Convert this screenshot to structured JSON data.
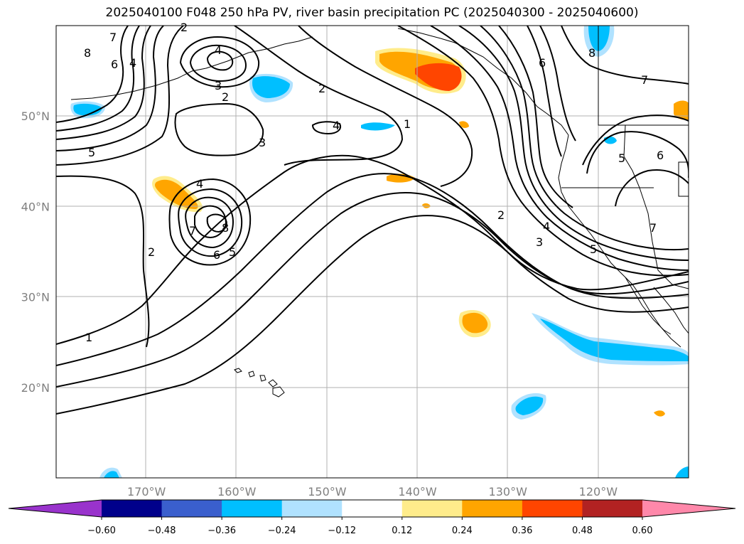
{
  "title": "2025040100 F048 250 hPa PV, river basin precipitation PC (2025040300 - 2025040600)",
  "x_ticks": [
    {
      "lon": -170,
      "label": "170°W"
    },
    {
      "lon": -160,
      "label": "160°W"
    },
    {
      "lon": -150,
      "label": "150°W"
    },
    {
      "lon": -140,
      "label": "140°W"
    },
    {
      "lon": -130,
      "label": "130°W"
    },
    {
      "lon": -120,
      "label": "120°W"
    }
  ],
  "y_ticks": [
    {
      "lat": 50,
      "label": "50°N"
    },
    {
      "lat": 40,
      "label": "40°N"
    },
    {
      "lat": 30,
      "label": "30°N"
    },
    {
      "lat": 20,
      "label": "20°N"
    }
  ],
  "map_extent": {
    "lon_min": -180,
    "lon_max": -110,
    "lat_min": 10,
    "lat_max": 60
  },
  "colorbar": {
    "colors": [
      "#9933cc",
      "#00008b",
      "#3a5fcd",
      "#00bfff",
      "#b0e2ff",
      "#ffffff",
      "#ffec8b",
      "#ffa500",
      "#ff4500",
      "#b22222",
      "#ff88aa"
    ],
    "labels": [
      "−0.60",
      "−0.48",
      "−0.36",
      "−0.24",
      "−0.12",
      "0.12",
      "0.24",
      "0.36",
      "0.48",
      "0.60"
    ]
  },
  "contour_labels": [
    "7",
    "8",
    "6",
    "4",
    "2",
    "4",
    "3",
    "2",
    "5",
    "2",
    "4",
    "3",
    "4",
    "1",
    "7",
    "8",
    "6",
    "5",
    "2",
    "1",
    "6",
    "8",
    "7",
    "6",
    "5",
    "7",
    "2",
    "4",
    "3",
    "5"
  ]
}
